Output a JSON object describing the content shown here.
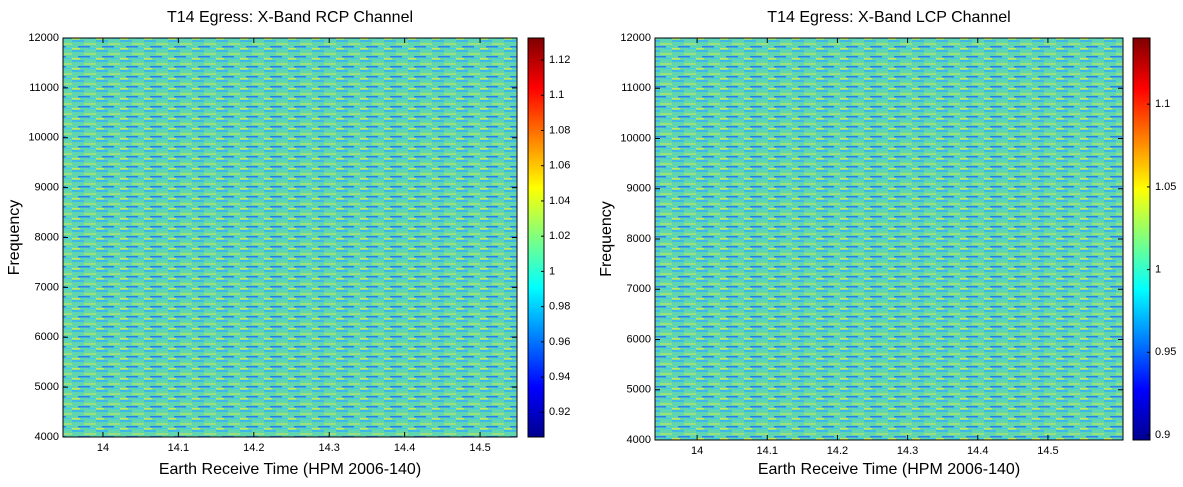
{
  "chart_data": [
    {
      "type": "heatmap",
      "title": "T14 Egress: X-Band RCP Channel",
      "x_label": "Earth Receive Time (HPM 2006-140)",
      "y_label": "Frequency",
      "xlim": [
        13.947,
        14.549
      ],
      "xticks": [
        14,
        14.1,
        14.2,
        14.3,
        14.4,
        14.5
      ],
      "ylim": [
        4000,
        12000
      ],
      "yticks": [
        4000,
        5000,
        6000,
        7000,
        8000,
        9000,
        10000,
        11000,
        12000
      ],
      "colormap": "jet",
      "clim": [
        0.906,
        1.1325
      ],
      "cticks": [
        0.92,
        0.94,
        0.96,
        0.98,
        1,
        1.02,
        1.04,
        1.06,
        1.08,
        1.1,
        1.12
      ]
    },
    {
      "type": "heatmap",
      "title": "T14 Egress: X-Band LCP Channel",
      "x_label": "Earth Receive Time (HPM 2006-140)",
      "y_label": "Frequency",
      "xlim": [
        13.94,
        14.607
      ],
      "xticks": [
        14,
        14.1,
        14.2,
        14.3,
        14.4,
        14.5
      ],
      "ylim": [
        4000,
        12000
      ],
      "yticks": [
        4000,
        5000,
        6000,
        7000,
        8000,
        9000,
        10000,
        11000,
        12000
      ],
      "colormap": "jet",
      "clim": [
        0.897,
        1.14
      ],
      "cticks": [
        0.9,
        0.95,
        1,
        1.05,
        1.1
      ]
    }
  ]
}
